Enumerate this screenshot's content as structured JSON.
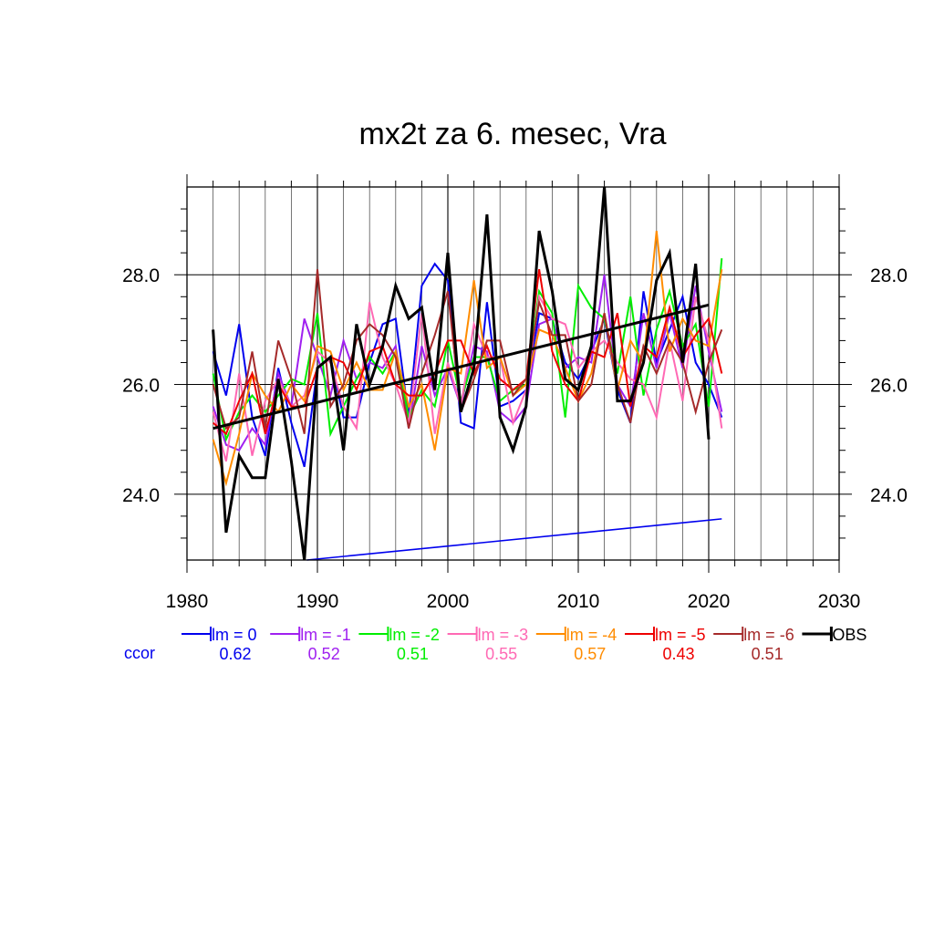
{
  "chart_data": {
    "type": "line",
    "title": "mx2t za 6. mesec, Vra",
    "xlabel": "",
    "ylabel": "",
    "xlim": [
      1980,
      2030
    ],
    "ylim": [
      22.8,
      29.6
    ],
    "x_ticks": [
      "1980",
      "1990",
      "2000",
      "2010",
      "2020",
      "2030"
    ],
    "y_ticks": [
      "24.0",
      "26.0",
      "28.0"
    ],
    "grid": true,
    "ccor_label": "ccor",
    "years": [
      1982,
      1983,
      1984,
      1985,
      1986,
      1987,
      1988,
      1989,
      1990,
      1991,
      1992,
      1993,
      1994,
      1995,
      1996,
      1997,
      1998,
      1999,
      2000,
      2001,
      2002,
      2003,
      2004,
      2005,
      2006,
      2007,
      2008,
      2009,
      2010,
      2011,
      2012,
      2013,
      2014,
      2015,
      2016,
      2017,
      2018,
      2019,
      2020,
      2021
    ],
    "series": [
      {
        "name": "lm = 0",
        "color": "#0000ee",
        "ccor": "0.62",
        "values": [
          26.6,
          25.8,
          27.1,
          25.4,
          24.7,
          26.3,
          25.3,
          24.5,
          26.3,
          26.5,
          25.4,
          25.4,
          26.4,
          27.1,
          27.2,
          25.4,
          27.8,
          28.2,
          27.9,
          25.3,
          25.2,
          27.5,
          25.6,
          25.7,
          25.9,
          27.3,
          27.2,
          26.4,
          26.1,
          26.6,
          27.2,
          25.9,
          25.3,
          27.7,
          26.4,
          27.0,
          27.6,
          26.4,
          26.0,
          25.4
        ]
      },
      {
        "name": "lm = -1",
        "color": "#a020f0",
        "ccor": "0.52",
        "values": [
          25.6,
          24.9,
          24.8,
          25.2,
          24.9,
          26.2,
          25.6,
          27.2,
          26.5,
          25.8,
          26.8,
          26.1,
          26.4,
          26.3,
          26.7,
          25.2,
          26.7,
          25.8,
          26.3,
          25.6,
          26.7,
          26.6,
          25.5,
          25.3,
          25.6,
          27.1,
          27.2,
          26.3,
          26.5,
          26.4,
          28.0,
          26.0,
          25.6,
          27.3,
          26.3,
          27.3,
          26.3,
          27.8,
          26.6,
          25.5
        ]
      },
      {
        "name": "lm = -2",
        "color": "#00ee00",
        "ccor": "0.51",
        "values": [
          26.2,
          25.0,
          25.5,
          25.8,
          25.5,
          25.8,
          26.1,
          26.0,
          27.3,
          25.1,
          25.6,
          26.1,
          26.5,
          26.2,
          26.6,
          25.4,
          25.9,
          25.6,
          26.8,
          25.7,
          26.5,
          26.5,
          25.7,
          25.9,
          26.0,
          27.7,
          27.3,
          25.4,
          27.8,
          27.4,
          27.2,
          26.2,
          27.6,
          25.8,
          27.0,
          27.7,
          26.7,
          27.1,
          25.6,
          28.3
        ]
      },
      {
        "name": "lm = -3",
        "color": "#ff69b4",
        "ccor": "0.55",
        "values": [
          25.5,
          24.6,
          26.2,
          24.7,
          25.7,
          26.1,
          25.6,
          25.8,
          26.6,
          26.4,
          25.6,
          25.2,
          27.5,
          26.5,
          26.0,
          25.3,
          27.3,
          25.1,
          26.4,
          25.6,
          27.1,
          26.5,
          26.5,
          25.3,
          25.9,
          27.6,
          27.2,
          27.1,
          26.3,
          26.6,
          26.8,
          26.4,
          26.1,
          26.0,
          25.4,
          26.8,
          25.7,
          27.6,
          26.8,
          25.2
        ]
      },
      {
        "name": "lm = -4",
        "color": "#ff8c00",
        "ccor": "0.57",
        "values": [
          25.0,
          24.2,
          25.1,
          26.2,
          25.8,
          25.5,
          26.0,
          25.7,
          26.7,
          26.6,
          25.9,
          26.4,
          25.9,
          25.9,
          26.6,
          25.6,
          26.0,
          24.8,
          26.3,
          26.2,
          27.9,
          26.3,
          26.5,
          25.8,
          26.0,
          27.0,
          26.9,
          26.3,
          25.7,
          26.2,
          27.3,
          25.9,
          26.8,
          26.4,
          28.8,
          26.6,
          27.2,
          26.8,
          26.7,
          28.1
        ]
      },
      {
        "name": "lm = -5",
        "color": "#ee0000",
        "ccor": "0.43",
        "values": [
          25.3,
          25.1,
          25.7,
          26.2,
          25.1,
          26.0,
          25.6,
          25.6,
          26.3,
          26.5,
          26.4,
          25.9,
          26.6,
          26.7,
          26.0,
          25.8,
          25.8,
          26.2,
          26.8,
          26.8,
          26.2,
          26.7,
          26.1,
          25.9,
          26.1,
          28.1,
          26.6,
          26.0,
          25.7,
          26.6,
          26.5,
          27.3,
          25.6,
          26.7,
          26.5,
          27.4,
          26.5,
          26.9,
          27.2,
          26.2
        ]
      },
      {
        "name": "lm = -6",
        "color": "#a52a2a",
        "ccor": "0.51",
        "values": [
          26.0,
          25.2,
          25.4,
          26.6,
          25.2,
          26.8,
          26.1,
          25.1,
          28.1,
          25.6,
          26.0,
          26.8,
          27.1,
          26.9,
          26.5,
          25.2,
          26.2,
          26.9,
          27.7,
          25.5,
          26.1,
          26.8,
          26.8,
          25.8,
          26.1,
          27.5,
          26.9,
          26.9,
          25.7,
          26.0,
          27.3,
          26.0,
          25.3,
          26.7,
          26.2,
          26.8,
          26.4,
          25.5,
          26.4,
          27.0
        ]
      },
      {
        "name": "OBS",
        "color": "#000000",
        "ccor": "",
        "values": [
          27.0,
          23.3,
          24.7,
          24.3,
          24.3,
          26.1,
          24.6,
          22.8,
          26.3,
          26.5,
          24.8,
          27.1,
          26.0,
          26.7,
          27.8,
          27.2,
          27.4,
          25.9,
          28.4,
          25.5,
          26.3,
          29.1,
          25.4,
          24.8,
          25.6,
          28.8,
          27.7,
          26.1,
          25.9,
          26.7,
          29.6,
          25.7,
          25.7,
          26.4,
          27.9,
          28.4,
          26.4,
          28.2,
          25.0,
          null
        ]
      }
    ],
    "trend_lines": [
      {
        "color": "#000000",
        "x": [
          1982,
          2020
        ],
        "y": [
          25.2,
          27.45
        ]
      },
      {
        "color": "#0000ee",
        "x": [
          1989.2,
          2021
        ],
        "y": [
          22.8,
          23.55
        ]
      }
    ]
  }
}
